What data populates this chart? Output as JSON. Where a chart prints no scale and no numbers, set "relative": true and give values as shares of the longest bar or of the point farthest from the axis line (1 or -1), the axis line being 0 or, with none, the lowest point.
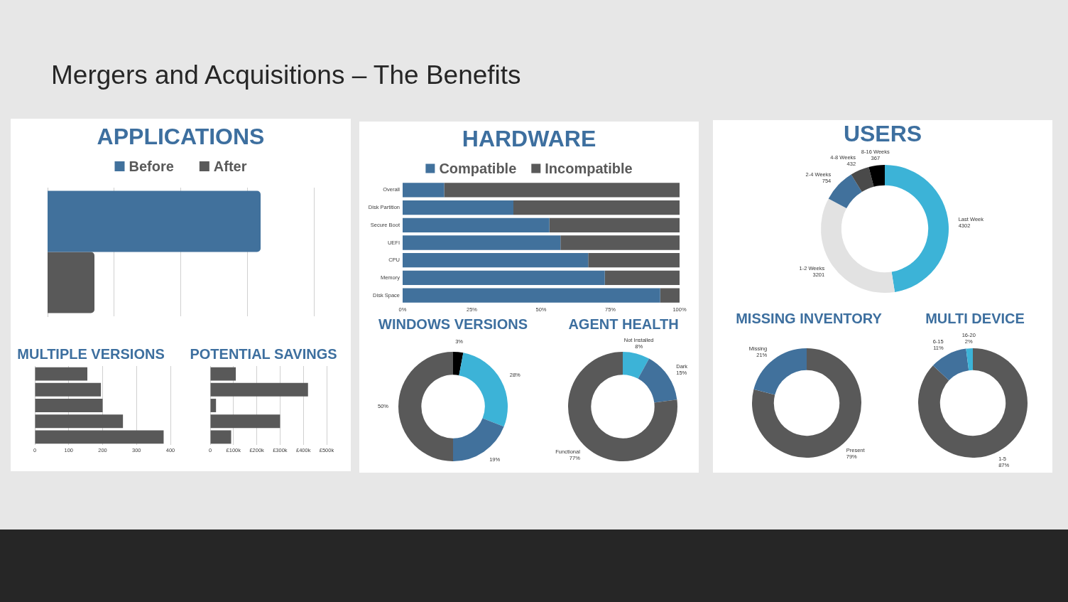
{
  "chart_data": [
    {
      "type": "other",
      "title": "Mergers and Acquisitions – The Benefits"
    },
    {
      "type": "bar",
      "title": "APPLICATIONS",
      "orientation": "horizontal",
      "relative": true,
      "categories": [
        null
      ],
      "series": [
        {
          "name": "Before",
          "color": "#41719c",
          "values": [
            1
          ]
        },
        {
          "name": "After",
          "color": "#595959",
          "values": [
            0.22
          ]
        }
      ],
      "grid": "x",
      "legend": "top"
    },
    {
      "type": "bar",
      "title": "HARDWARE",
      "orientation": "horizontal",
      "stacked": true,
      "categories": [
        "Overall",
        "Disk Partition",
        "Secure Boot",
        "UEFI",
        "CPU",
        "Memory",
        "Disk Space"
      ],
      "series": [
        {
          "name": "Compatible",
          "color": "#41719c",
          "values": [
            15,
            40,
            53,
            57,
            67,
            73,
            93
          ]
        },
        {
          "name": "Incompatible",
          "color": "#595959",
          "values": [
            85,
            60,
            47,
            43,
            33,
            27,
            7
          ]
        }
      ],
      "xlim": [
        0,
        100
      ],
      "xticks": [
        {
          "value": 0,
          "label": "0%"
        },
        {
          "value": 25,
          "label": "25%"
        },
        {
          "value": 50,
          "label": "50%"
        },
        {
          "value": 75,
          "label": "75%"
        },
        {
          "value": 100,
          "label": "100%"
        }
      ],
      "legend": "top"
    },
    {
      "type": "donut",
      "title": "USERS",
      "categories": [
        "Last Week",
        "1-2 Weeks",
        "2-4 Weeks",
        "4-8 Weeks",
        "8-16 Weeks"
      ],
      "values": [
        4302,
        3201,
        754,
        432,
        367
      ],
      "colors": [
        "#3cb3d7",
        "#e2e2e2",
        "#41719c",
        "#4a4a4a",
        "#000000"
      ],
      "data_labels": true
    },
    {
      "type": "bar",
      "title": "MULTIPLE VERSIONS",
      "orientation": "horizontal",
      "categories": [
        null,
        null,
        null,
        null,
        null
      ],
      "values": [
        155,
        195,
        200,
        260,
        380
      ],
      "color": "#595959",
      "xlim": [
        0,
        400
      ],
      "xticks": [
        0,
        100,
        200,
        300,
        400
      ],
      "grid": "x"
    },
    {
      "type": "bar",
      "title": "POTENTIAL SAVINGS",
      "orientation": "horizontal",
      "categories": [
        null,
        null,
        null,
        null,
        null
      ],
      "values": [
        110000,
        420000,
        25000,
        300000,
        90000
      ],
      "color": "#595959",
      "xlim": [
        0,
        500000
      ],
      "xticks": [
        0,
        {
          "value": 100000,
          "label": "£100k"
        },
        {
          "value": 200000,
          "label": "£200k"
        },
        {
          "value": 300000,
          "label": "£300k"
        },
        {
          "value": 400000,
          "label": "£400k"
        },
        {
          "value": 500000,
          "label": "£500k"
        }
      ],
      "grid": "x"
    },
    {
      "type": "donut",
      "title": "WINDOWS VERSIONS",
      "categories": [
        null,
        null,
        null,
        null
      ],
      "values": [
        3,
        28,
        19,
        50
      ],
      "colors": [
        "#000000",
        "#3cb3d7",
        "#41719c",
        "#595959"
      ],
      "value_labels": [
        "3%",
        "28%",
        "19%",
        "50%"
      ]
    },
    {
      "type": "donut",
      "title": "AGENT HEALTH",
      "categories": [
        "Not Installed",
        "Dark",
        "Functional"
      ],
      "values": [
        8,
        15,
        77
      ],
      "colors": [
        "#3cb3d7",
        "#41719c",
        "#595959"
      ],
      "value_labels": [
        "8%",
        "15%",
        "77%"
      ]
    },
    {
      "type": "donut",
      "title": "MISSING INVENTORY",
      "categories": [
        "Present",
        "Missing"
      ],
      "values": [
        79,
        21
      ],
      "colors": [
        "#595959",
        "#41719c"
      ],
      "value_labels": [
        "79%",
        "21%"
      ]
    },
    {
      "type": "donut",
      "title": "MULTI DEVICE",
      "categories": [
        "1-5",
        "6-15",
        "16-20"
      ],
      "values": [
        87,
        11,
        2
      ],
      "colors": [
        "#595959",
        "#41719c",
        "#3cb3d7"
      ],
      "value_labels": [
        "87%",
        "11%",
        "2%"
      ]
    }
  ]
}
